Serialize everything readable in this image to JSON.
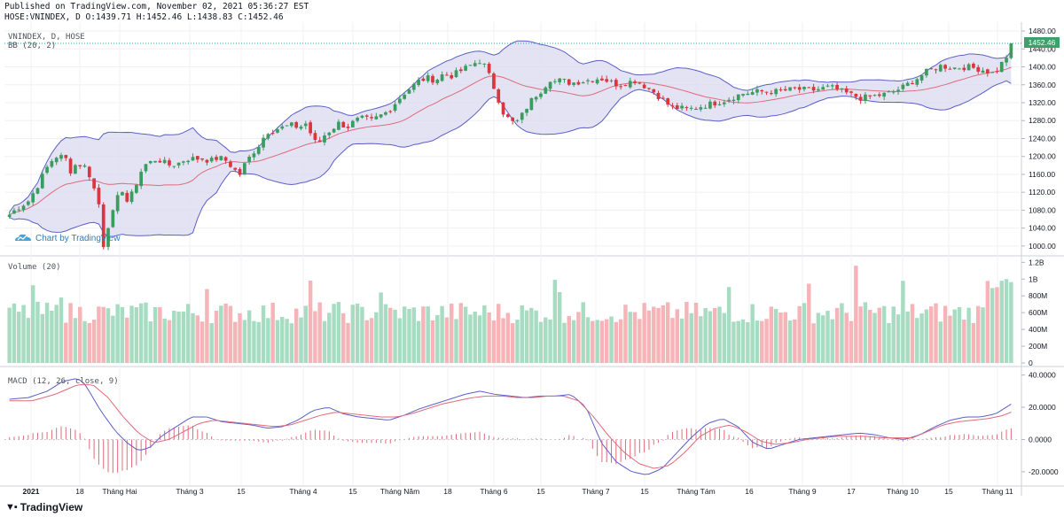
{
  "header": {
    "line1": "Published on TradingView.com, November 02, 2021 05:36:27 EST",
    "line2": "HOSE:VNINDEX, D O:1439.71 H:1452.46 L:1438.83 C:1452.46"
  },
  "footer": {
    "brand": "TradingView"
  },
  "watermark": "Chart by TradingView",
  "colors": {
    "up": "#26a69a",
    "up_fill": "#3b9c5f",
    "down": "#ef5350",
    "down_fill": "#d9363e",
    "vol_up": "#a8dcc2",
    "vol_down": "#f5b5b8",
    "bb_fill": "#d9d9f0",
    "bb_band": "#5b5fc7",
    "bb_mid": "#e06a7a",
    "macd_line": "#5b5fc7",
    "signal_line": "#e06a7a",
    "hist": "#e06a7a",
    "last_price_bg": "#3ea06a",
    "dotted": "#26a69a"
  },
  "chart_data": [
    {
      "type": "candlestick",
      "pane": "price",
      "title": "VNINDEX, D, HOSE",
      "indicator_label": "BB (20, 2)",
      "y_ticks": [
        1000,
        1040,
        1080,
        1120,
        1160,
        1200,
        1240,
        1280,
        1320,
        1360,
        1400,
        1440,
        1480
      ],
      "ylim": [
        980,
        1490
      ],
      "last_price": "1452.46",
      "num_bars": 210,
      "close_anchors": [
        [
          0,
          1070
        ],
        [
          3,
          1085
        ],
        [
          7,
          1100
        ],
        [
          9,
          1120
        ],
        [
          11,
          1140
        ],
        [
          13,
          1165
        ],
        [
          15,
          1185
        ],
        [
          17,
          1200
        ],
        [
          19,
          1200
        ],
        [
          21,
          1195
        ],
        [
          23,
          1165
        ],
        [
          25,
          1185
        ],
        [
          27,
          1180
        ],
        [
          29,
          1175
        ],
        [
          31,
          1135
        ],
        [
          33,
          1110
        ],
        [
          34,
          1060
        ],
        [
          35,
          1000
        ],
        [
          37,
          1050
        ],
        [
          39,
          1080
        ],
        [
          41,
          1120
        ],
        [
          43,
          1130
        ],
        [
          44,
          1095
        ],
        [
          46,
          1120
        ],
        [
          48,
          1150
        ],
        [
          50,
          1180
        ],
        [
          52,
          1185
        ],
        [
          55,
          1195
        ],
        [
          58,
          1185
        ],
        [
          60,
          1180
        ],
        [
          63,
          1185
        ],
        [
          66,
          1195
        ],
        [
          69,
          1195
        ],
        [
          72,
          1195
        ],
        [
          75,
          1190
        ],
        [
          78,
          1198
        ],
        [
          81,
          1190
        ],
        [
          84,
          1170
        ],
        [
          86,
          1160
        ],
        [
          88,
          1185
        ],
        [
          91,
          1210
        ],
        [
          93,
          1225
        ],
        [
          96,
          1255
        ],
        [
          99,
          1260
        ],
        [
          102,
          1265
        ],
        [
          105,
          1270
        ],
        [
          108,
          1265
        ],
        [
          111,
          1275
        ],
        [
          113,
          1240
        ],
        [
          115,
          1225
        ],
        [
          117,
          1245
        ],
        [
          120,
          1260
        ],
        [
          123,
          1275
        ],
        [
          126,
          1265
        ],
        [
          129,
          1280
        ],
        [
          132,
          1285
        ],
        [
          135,
          1280
        ],
        [
          138,
          1290
        ],
        [
          141,
          1300
        ],
        [
          144,
          1320
        ],
        [
          147,
          1340
        ],
        [
          150,
          1355
        ],
        [
          153,
          1370
        ],
        [
          156,
          1375
        ],
        [
          159,
          1370
        ],
        [
          162,
          1385
        ],
        [
          165,
          1380
        ],
        [
          168,
          1390
        ],
        [
          171,
          1400
        ],
        [
          174,
          1410
        ],
        [
          176,
          1415
        ],
        [
          178,
          1395
        ],
        [
          180,
          1365
        ],
        [
          182,
          1335
        ],
        [
          184,
          1300
        ],
        [
          186,
          1285
        ],
        [
          188,
          1275
        ],
        [
          190,
          1280
        ],
        [
          192,
          1300
        ],
        [
          194,
          1320
        ],
        [
          196,
          1335
        ],
        [
          198,
          1345
        ],
        [
          200,
          1360
        ],
        [
          202,
          1375
        ],
        [
          204,
          1365
        ],
        [
          206,
          1372
        ],
        [
          208,
          1365
        ],
        [
          210,
          1365
        ]
      ],
      "note_anchors_after_july": [
        [
          0,
          1365
        ],
        [
          6,
          1375
        ],
        [
          10,
          1360
        ],
        [
          14,
          1370
        ],
        [
          18,
          1345
        ],
        [
          22,
          1310
        ],
        [
          26,
          1305
        ],
        [
          30,
          1315
        ],
        [
          34,
          1325
        ],
        [
          38,
          1340
        ],
        [
          42,
          1345
        ],
        [
          46,
          1345
        ],
        [
          50,
          1350
        ],
        [
          54,
          1348
        ],
        [
          58,
          1355
        ],
        [
          62,
          1340
        ],
        [
          65,
          1330
        ],
        [
          68,
          1335
        ],
        [
          71,
          1340
        ],
        [
          74,
          1352
        ],
        [
          77,
          1370
        ],
        [
          80,
          1390
        ],
        [
          83,
          1402
        ],
        [
          86,
          1398
        ],
        [
          89,
          1400
        ],
        [
          92,
          1395
        ],
        [
          95,
          1385
        ],
        [
          97,
          1410
        ],
        [
          99,
          1440
        ],
        [
          100,
          1452.46
        ]
      ]
    },
    {
      "type": "bar",
      "pane": "volume",
      "title": "Volume (20)",
      "y_ticks": [
        "0",
        "200M",
        "400M",
        "600M",
        "800M",
        "1B",
        "1.2B"
      ],
      "ylim": [
        0,
        1220000000
      ]
    },
    {
      "type": "line",
      "pane": "macd",
      "title": "MACD (12, 26, close, 9)",
      "y_ticks": [
        "40.0000",
        "20.0000",
        "0.0000",
        "-20.0000"
      ],
      "ylim": [
        -25,
        42
      ],
      "series": [
        {
          "name": "MACD",
          "anchors": [
            [
              0,
              25
            ],
            [
              5,
              26
            ],
            [
              10,
              30
            ],
            [
              14,
              36
            ],
            [
              18,
              38
            ],
            [
              20,
              34
            ],
            [
              24,
              18
            ],
            [
              28,
              5
            ],
            [
              31,
              -2
            ],
            [
              34,
              -7
            ],
            [
              37,
              -5
            ],
            [
              40,
              2
            ],
            [
              44,
              8
            ],
            [
              48,
              14
            ],
            [
              52,
              14
            ],
            [
              56,
              11
            ],
            [
              60,
              10
            ],
            [
              64,
              9
            ],
            [
              68,
              7
            ],
            [
              72,
              8
            ],
            [
              76,
              12
            ],
            [
              80,
              18
            ],
            [
              84,
              20
            ],
            [
              88,
              16
            ],
            [
              92,
              14
            ],
            [
              96,
              13
            ],
            [
              100,
              12
            ],
            [
              104,
              15
            ],
            [
              108,
              19
            ],
            [
              112,
              22
            ],
            [
              116,
              25
            ],
            [
              120,
              28
            ],
            [
              124,
              30
            ],
            [
              128,
              28
            ],
            [
              132,
              27
            ],
            [
              136,
              26
            ],
            [
              140,
              27
            ],
            [
              144,
              27
            ],
            [
              148,
              28
            ],
            [
              152,
              20
            ],
            [
              156,
              -2
            ],
            [
              160,
              -14
            ],
            [
              164,
              -20
            ],
            [
              168,
              -22
            ],
            [
              172,
              -18
            ],
            [
              176,
              -8
            ],
            [
              180,
              2
            ],
            [
              184,
              10
            ],
            [
              188,
              13
            ],
            [
              192,
              8
            ],
            [
              196,
              -2
            ],
            [
              200,
              -6
            ],
            [
              204,
              -3
            ],
            [
              208,
              0
            ],
            [
              212,
              1
            ],
            [
              216,
              2
            ],
            [
              220,
              3
            ],
            [
              224,
              4
            ],
            [
              228,
              3
            ],
            [
              232,
              1
            ],
            [
              236,
              0
            ],
            [
              240,
              3
            ],
            [
              244,
              8
            ],
            [
              248,
              12
            ],
            [
              252,
              14
            ],
            [
              256,
              14
            ],
            [
              260,
              16
            ],
            [
              264,
              22
            ]
          ]
        },
        {
          "name": "Signal",
          "anchors": [
            [
              0,
              24
            ],
            [
              6,
              24
            ],
            [
              12,
              28
            ],
            [
              18,
              34
            ],
            [
              22,
              34
            ],
            [
              26,
              26
            ],
            [
              30,
              14
            ],
            [
              34,
              4
            ],
            [
              38,
              -2
            ],
            [
              42,
              0
            ],
            [
              46,
              5
            ],
            [
              50,
              10
            ],
            [
              54,
              12
            ],
            [
              58,
              11
            ],
            [
              62,
              10
            ],
            [
              66,
              9
            ],
            [
              70,
              8
            ],
            [
              74,
              9
            ],
            [
              78,
              12
            ],
            [
              82,
              15
            ],
            [
              86,
              17
            ],
            [
              90,
              16
            ],
            [
              94,
              15
            ],
            [
              98,
              14
            ],
            [
              102,
              14
            ],
            [
              106,
              16
            ],
            [
              110,
              19
            ],
            [
              114,
              22
            ],
            [
              118,
              24
            ],
            [
              122,
              26
            ],
            [
              126,
              27
            ],
            [
              130,
              27
            ],
            [
              134,
              26
            ],
            [
              138,
              26
            ],
            [
              142,
              27
            ],
            [
              146,
              27
            ],
            [
              150,
              24
            ],
            [
              154,
              14
            ],
            [
              158,
              2
            ],
            [
              162,
              -8
            ],
            [
              166,
              -15
            ],
            [
              170,
              -18
            ],
            [
              174,
              -16
            ],
            [
              178,
              -8
            ],
            [
              182,
              2
            ],
            [
              186,
              7
            ],
            [
              190,
              9
            ],
            [
              194,
              5
            ],
            [
              198,
              -1
            ],
            [
              202,
              -3
            ],
            [
              206,
              -2
            ],
            [
              210,
              0
            ],
            [
              214,
              1
            ],
            [
              218,
              2
            ],
            [
              222,
              2
            ],
            [
              226,
              2
            ],
            [
              230,
              1
            ],
            [
              234,
              1
            ],
            [
              238,
              1
            ],
            [
              242,
              5
            ],
            [
              246,
              9
            ],
            [
              250,
              11
            ],
            [
              254,
              12
            ],
            [
              258,
              13
            ],
            [
              262,
              15
            ],
            [
              264,
              17
            ]
          ]
        }
      ]
    }
  ],
  "x_axis": {
    "labels": [
      "2021",
      "18",
      "Tháng Hai",
      "Tháng 3",
      "15",
      "Tháng 4",
      "15",
      "Tháng Năm",
      "18",
      "Tháng 6",
      "15",
      "Tháng 7",
      "15",
      "Tháng Tám",
      "16",
      "Tháng 9",
      "17",
      "Tháng 10",
      "15",
      "Tháng 11"
    ],
    "bold": [
      true,
      false,
      false,
      false,
      false,
      false,
      false,
      false,
      false,
      false,
      false,
      false,
      false,
      false,
      false,
      false,
      false,
      false,
      false,
      false
    ]
  }
}
